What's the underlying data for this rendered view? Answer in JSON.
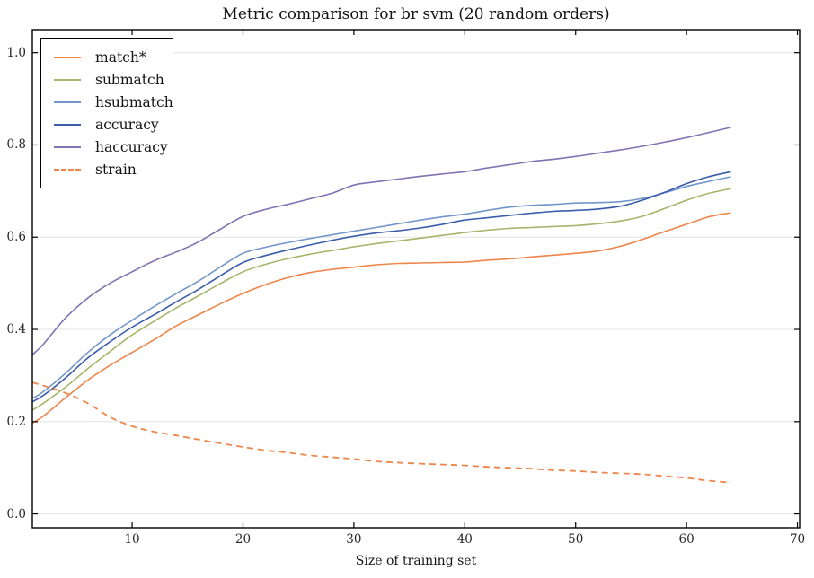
{
  "title": "Metric comparison for br svm (20 random orders)",
  "chart_data": {
    "type": "line",
    "title": "Metric comparison for br svm (20 random orders)",
    "xlabel": "Size of training set",
    "ylabel": "",
    "xlim": [
      1,
      70.2
    ],
    "ylim": [
      -0.03,
      1.05
    ],
    "xticks": [
      10,
      20,
      30,
      40,
      50,
      60,
      70
    ],
    "yticks": [
      "0.0",
      "0.2",
      "0.4",
      "0.6",
      "0.8",
      "1.0"
    ],
    "grid": "horizontal",
    "legend_position": "upper-left",
    "axis_color": "#000000",
    "grid_color": "#e4e4e4",
    "x": [
      1,
      2,
      4,
      6,
      8,
      10,
      12,
      14,
      16,
      18,
      20,
      22,
      24,
      26,
      28,
      30,
      32,
      34,
      36,
      38,
      40,
      42,
      44,
      46,
      48,
      50,
      52,
      54,
      56,
      58,
      60,
      62,
      64
    ],
    "series": [
      {
        "name": "match*",
        "color": "#EE854A",
        "style": "solid",
        "values": [
          0.197,
          0.212,
          0.252,
          0.29,
          0.322,
          0.35,
          0.378,
          0.408,
          0.432,
          0.456,
          0.478,
          0.497,
          0.512,
          0.523,
          0.53,
          0.535,
          0.54,
          0.543,
          0.544,
          0.545,
          0.546,
          0.55,
          0.553,
          0.557,
          0.561,
          0.565,
          0.57,
          0.58,
          0.595,
          0.612,
          0.628,
          0.644,
          0.653
        ]
      },
      {
        "name": "submatch",
        "color": "#A6B56A",
        "style": "solid",
        "values": [
          0.225,
          0.24,
          0.275,
          0.315,
          0.352,
          0.388,
          0.418,
          0.447,
          0.473,
          0.5,
          0.525,
          0.541,
          0.553,
          0.563,
          0.571,
          0.579,
          0.586,
          0.592,
          0.598,
          0.604,
          0.61,
          0.615,
          0.619,
          0.621,
          0.623,
          0.625,
          0.629,
          0.635,
          0.645,
          0.662,
          0.68,
          0.695,
          0.705
        ]
      },
      {
        "name": "hsubmatch",
        "color": "#7295CB",
        "style": "solid",
        "values": [
          0.25,
          0.265,
          0.305,
          0.35,
          0.388,
          0.42,
          0.45,
          0.478,
          0.505,
          0.536,
          0.565,
          0.578,
          0.588,
          0.597,
          0.605,
          0.613,
          0.621,
          0.629,
          0.637,
          0.644,
          0.65,
          0.658,
          0.665,
          0.669,
          0.671,
          0.674,
          0.675,
          0.677,
          0.684,
          0.696,
          0.71,
          0.721,
          0.731
        ]
      },
      {
        "name": "accuracy",
        "color": "#3A5CAA",
        "style": "solid",
        "values": [
          0.243,
          0.257,
          0.295,
          0.338,
          0.373,
          0.405,
          0.432,
          0.46,
          0.487,
          0.517,
          0.545,
          0.56,
          0.572,
          0.583,
          0.593,
          0.602,
          0.609,
          0.614,
          0.62,
          0.628,
          0.637,
          0.642,
          0.647,
          0.652,
          0.656,
          0.658,
          0.661,
          0.667,
          0.68,
          0.697,
          0.716,
          0.731,
          0.742
        ]
      },
      {
        "name": "haccuracy",
        "color": "#8172B2",
        "style": "solid",
        "values": [
          0.345,
          0.368,
          0.425,
          0.468,
          0.5,
          0.525,
          0.549,
          0.568,
          0.59,
          0.618,
          0.645,
          0.66,
          0.671,
          0.683,
          0.695,
          0.713,
          0.72,
          0.726,
          0.732,
          0.737,
          0.742,
          0.75,
          0.757,
          0.764,
          0.769,
          0.775,
          0.782,
          0.789,
          0.797,
          0.806,
          0.816,
          0.827,
          0.838
        ]
      },
      {
        "name": "strain",
        "color": "#EE854A",
        "style": "dashed",
        "values": [
          0.285,
          0.278,
          0.262,
          0.24,
          0.21,
          0.19,
          0.178,
          0.17,
          0.161,
          0.153,
          0.145,
          0.138,
          0.133,
          0.127,
          0.123,
          0.119,
          0.114,
          0.111,
          0.109,
          0.107,
          0.105,
          0.102,
          0.1,
          0.098,
          0.095,
          0.093,
          0.09,
          0.088,
          0.086,
          0.082,
          0.078,
          0.072,
          0.068
        ]
      }
    ]
  }
}
